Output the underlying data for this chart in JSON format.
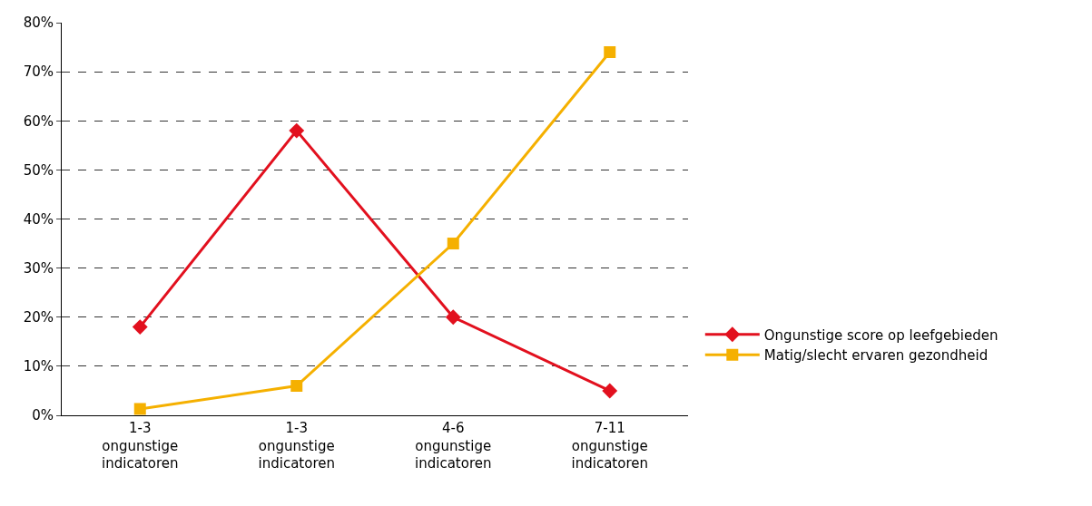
{
  "chart_data": {
    "type": "line",
    "categories": [
      "1-3\nongunstige\nindicatoren",
      "1-3\nongunstige\nindicatoren",
      "4-6\nongunstige\nindicatoren",
      "7-11\nongunstige\nindicatoren"
    ],
    "series": [
      {
        "name": "Ongunstige score op leefgebieden",
        "color": "#e2101e",
        "values": [
          0.18,
          0.58,
          0.2,
          0.05
        ],
        "marker": "diamond"
      },
      {
        "name": "Matig/slecht ervaren gezondheid",
        "color": "#f5b000",
        "values": [
          0.013,
          0.06,
          0.35,
          0.74
        ],
        "marker": "square"
      }
    ],
    "ylim": [
      0,
      0.8
    ],
    "yticks": [
      {
        "value": 0,
        "label": "0%"
      },
      {
        "value": 0.1,
        "label": "10%"
      },
      {
        "value": 0.2,
        "label": "20%"
      },
      {
        "value": 0.3,
        "label": "30%"
      },
      {
        "value": 0.4,
        "label": "40%"
      },
      {
        "value": 0.5,
        "label": "50%"
      },
      {
        "value": 0.6,
        "label": "60%"
      },
      {
        "value": 0.7,
        "label": "70%"
      },
      {
        "value": 0.8,
        "label": "80%"
      }
    ],
    "grid": "y",
    "legend": "right",
    "line_style": "solid"
  }
}
